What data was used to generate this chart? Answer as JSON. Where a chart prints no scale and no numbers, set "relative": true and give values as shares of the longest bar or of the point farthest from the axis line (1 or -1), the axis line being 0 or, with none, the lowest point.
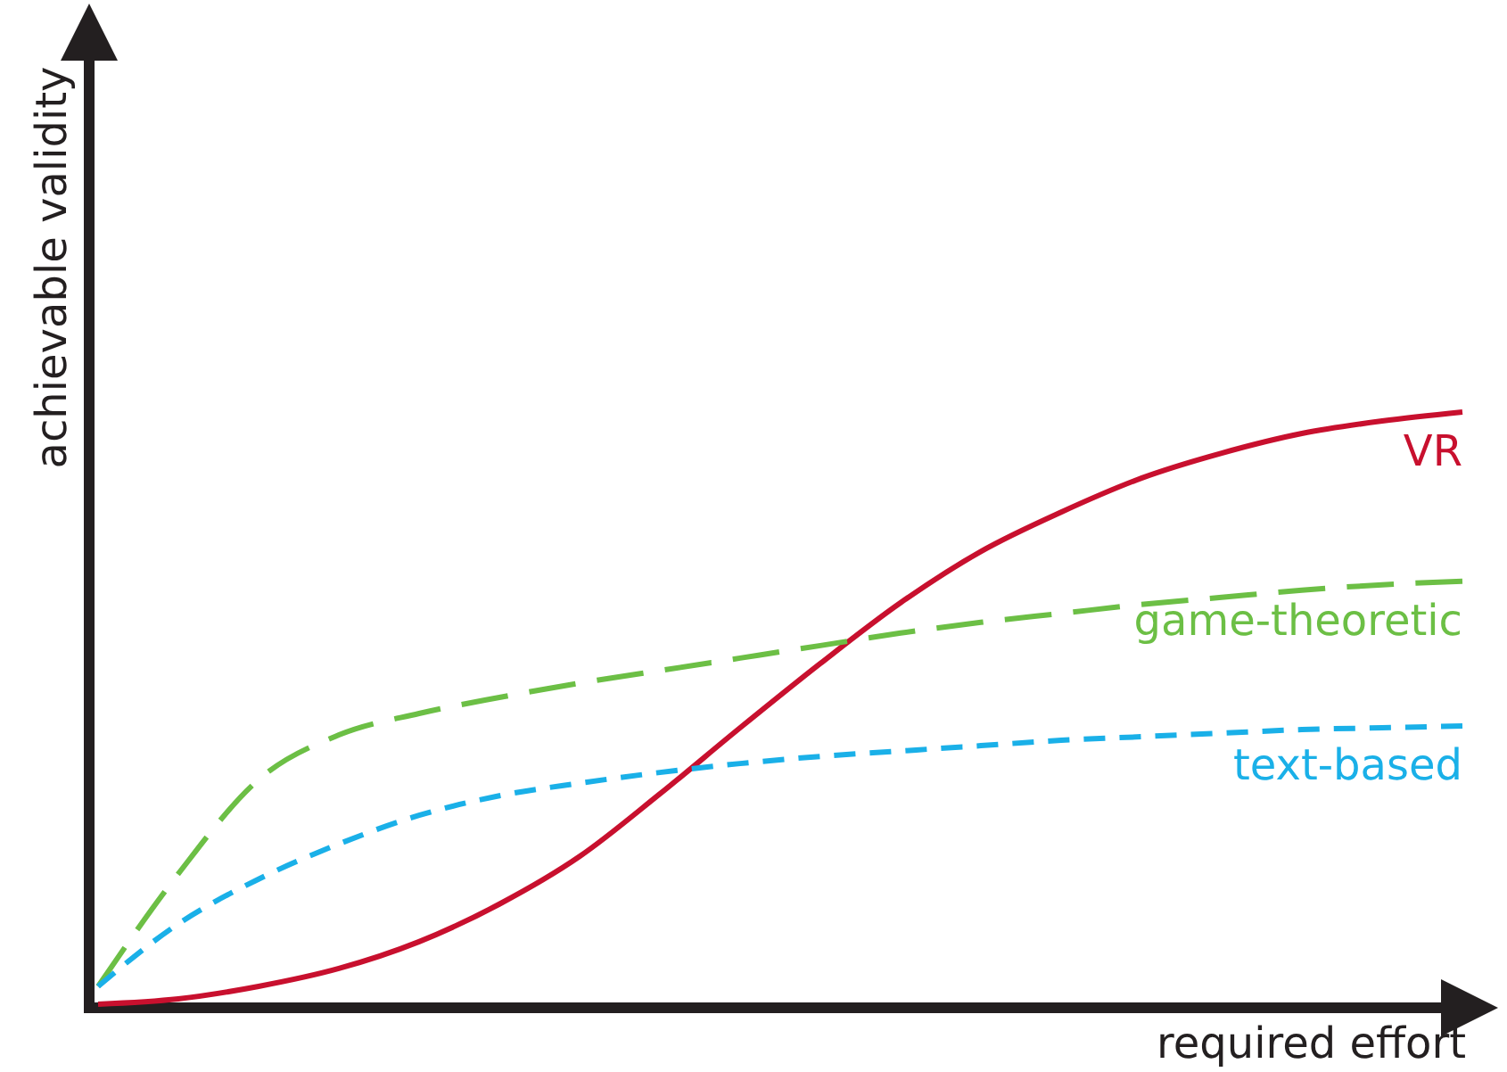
{
  "chart_data": {
    "type": "line",
    "relative": true,
    "xlabel": "required effort",
    "ylabel": "achievable validity",
    "categories": [
      null,
      null,
      null,
      null,
      null,
      null,
      null,
      null,
      null,
      null,
      null,
      null,
      null,
      null,
      null,
      null,
      null,
      null
    ],
    "legend": false,
    "grid": false,
    "marker": "none",
    "series": [
      {
        "name": "VR",
        "color": "#c8102e",
        "line_style": "solid",
        "values": [
          0.006,
          0.015,
          0.036,
          0.066,
          0.111,
          0.174,
          0.254,
          0.359,
          0.47,
          0.578,
          0.68,
          0.766,
          0.832,
          0.889,
          0.931,
          0.964,
          0.985,
          1
        ]
      },
      {
        "name": "game-theoretic",
        "color": "#6cbf45",
        "line_style": "dashed",
        "values": [
          0.036,
          0.225,
          0.383,
          0.458,
          0.494,
          0.521,
          0.545,
          0.566,
          0.587,
          0.608,
          0.629,
          0.647,
          0.662,
          0.677,
          0.689,
          0.701,
          0.71,
          0.716
        ]
      },
      {
        "name": "text-based",
        "color": "#1ab0e8",
        "line_style": "dashed",
        "values": [
          0.036,
          0.141,
          0.216,
          0.275,
          0.323,
          0.356,
          0.377,
          0.395,
          0.41,
          0.422,
          0.431,
          0.44,
          0.449,
          0.455,
          0.461,
          0.467,
          0.47,
          0.473
        ]
      }
    ]
  }
}
